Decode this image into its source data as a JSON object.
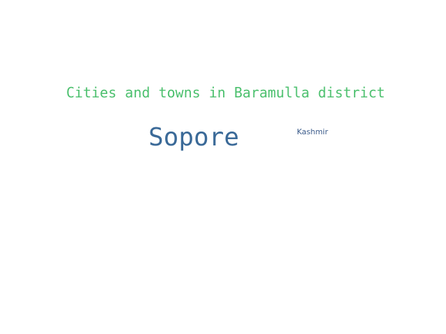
{
  "word_cloud": {
    "words": [
      {
        "text": "Cities and towns in Baramulla district",
        "color": "#4cc06e"
      },
      {
        "text": "Sopore",
        "color": "#3b6a98"
      },
      {
        "text": "Kashmir",
        "color": "#3a5a8a"
      }
    ]
  }
}
